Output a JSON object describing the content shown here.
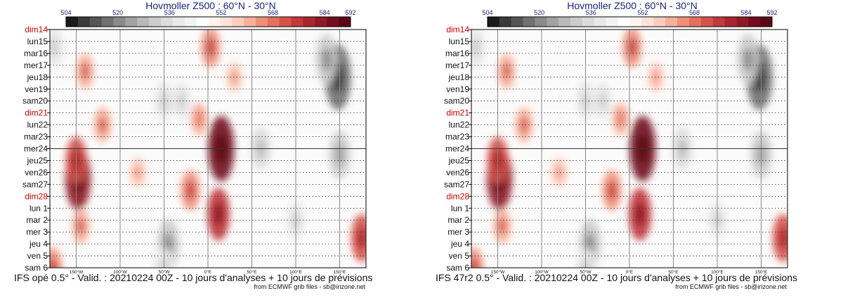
{
  "panels": [
    {
      "title": "Hovmoller Z500 : 60°N - 30°N",
      "footer": "IFS opé 0.5° - Valid. : 20210224 00Z - 10 jours d'analyses + 10 jours de prévisions",
      "credit": "from ECMWF grib files - sb@irizone.net"
    },
    {
      "title": "Hovmoller Z500 : 60°N - 30°N",
      "footer": "IFS 47r2 0.5° - Valid. : 20210224 00Z - 10 jours d'analyses + 10 jours de prévisions",
      "credit": "from ECMWF grib files - sb@irizone.net"
    }
  ],
  "chart_data": {
    "type": "heatmap",
    "colorbar": {
      "labels": [
        "504",
        "520",
        "536",
        "552",
        "568",
        "584",
        "592"
      ],
      "label_levels": [
        504,
        520,
        536,
        552,
        568,
        584,
        592
      ],
      "range": [
        504,
        592
      ],
      "colors": [
        "#1a1a1a",
        "#3a3a3a",
        "#555555",
        "#707070",
        "#8a8a8a",
        "#a2a2a2",
        "#b9b9b9",
        "#cccccc",
        "#dcdcdc",
        "#e8e8e8",
        "#f2f2f2",
        "#ffffff",
        "#fff3ee",
        "#fde2d7",
        "#fbcdbb",
        "#f6b09a",
        "#ef907a",
        "#e4705e",
        "#d5534a",
        "#c0393c",
        "#a8262f",
        "#8e1a26",
        "#720e1e",
        "#5a0818"
      ]
    },
    "y_labels": [
      "dim14",
      "lun15",
      "mar16",
      "mer17",
      "jeu18",
      "ven19",
      "sam20",
      "dim21",
      "lun22",
      "mar23",
      "mer24",
      "jeu25",
      "ven26",
      "sam27",
      "dim28",
      "lun 1",
      "mar 2",
      "mer 3",
      "jeu 4",
      "ven 5",
      "sam 6"
    ],
    "y_label_colors": [
      "#cc0000",
      "#111111",
      "#111111",
      "#111111",
      "#111111",
      "#111111",
      "#111111",
      "#cc0000",
      "#111111",
      "#111111",
      "#111111",
      "#111111",
      "#111111",
      "#111111",
      "#cc0000",
      "#111111",
      "#111111",
      "#111111",
      "#111111",
      "#111111",
      "#111111"
    ],
    "x_labels": [
      "150°W",
      "100°W",
      "50°W",
      "0°E",
      "50°E",
      "100°E",
      "150°E"
    ],
    "x_ticks_deg": [
      -150,
      -100,
      -50,
      0,
      50,
      100,
      150
    ],
    "x_range_deg": [
      -180,
      180
    ],
    "analysis_forecast_split": "mer24",
    "features": [
      {
        "lon": -148,
        "day": 12.5,
        "value": 584
      },
      {
        "lon": -150,
        "day": 11,
        "value": 572
      },
      {
        "lon": -140,
        "day": 3.5,
        "value": 562
      },
      {
        "lon": -145,
        "day": 16.5,
        "value": 562
      },
      {
        "lon": -177,
        "day": 20,
        "value": 566
      },
      {
        "lon": -80,
        "day": 12,
        "value": 558
      },
      {
        "lon": -20,
        "day": 13.5,
        "value": 566
      },
      {
        "lon": 15,
        "day": 10,
        "value": 586
      },
      {
        "lon": 12,
        "day": 15.5,
        "value": 576
      },
      {
        "lon": 3,
        "day": 1.5,
        "value": 566
      },
      {
        "lon": -120,
        "day": 8,
        "value": 562
      },
      {
        "lon": -10,
        "day": 7.5,
        "value": 560
      },
      {
        "lon": 30,
        "day": 4,
        "value": 558
      },
      {
        "lon": 175,
        "day": 17.5,
        "value": 572
      },
      {
        "lon": 148,
        "day": 4,
        "value": 518
      },
      {
        "lon": 135,
        "day": 2.5,
        "value": 530
      },
      {
        "lon": -175,
        "day": 1.5,
        "value": 538
      },
      {
        "lon": -45,
        "day": 18,
        "value": 530
      },
      {
        "lon": -50,
        "day": 6,
        "value": 538
      },
      {
        "lon": -30,
        "day": 6,
        "value": 540
      },
      {
        "lon": 60,
        "day": 10,
        "value": 536
      },
      {
        "lon": 150,
        "day": 10.5,
        "value": 532
      },
      {
        "lon": -50,
        "day": 20,
        "value": 538
      },
      {
        "lon": 100,
        "day": 16,
        "value": 540
      }
    ]
  }
}
